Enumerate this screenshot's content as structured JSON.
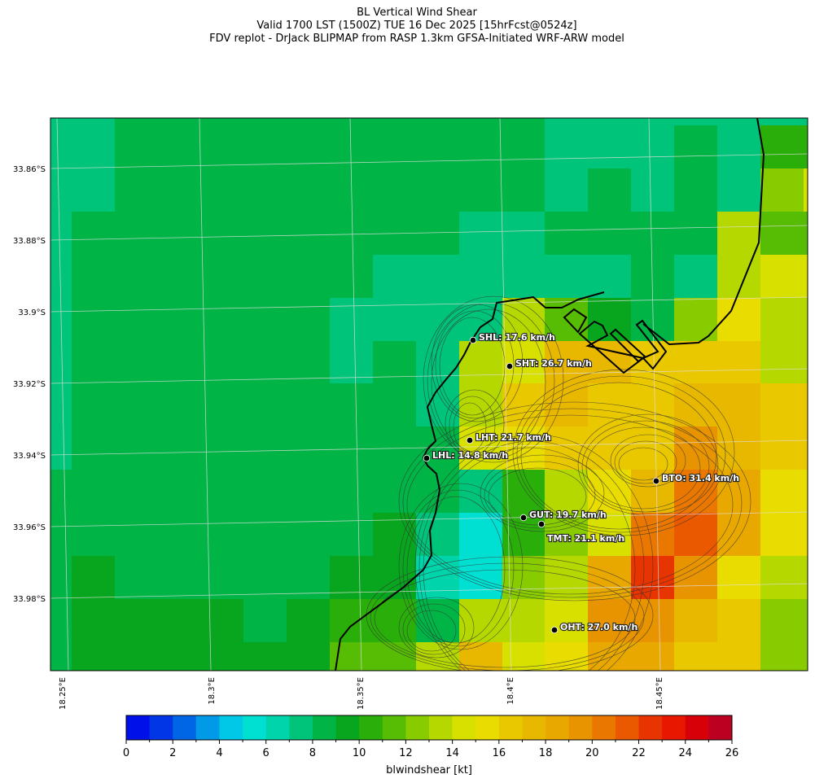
{
  "title": {
    "line1": "BL Vertical Wind Shear",
    "line2": "Valid 1700 LST (1500Z) TUE 16 Dec 2025 [15hrFcst@0524z]",
    "line3": "FDV replot - DrJack BLIPMAP from RASP 1.3km GFSA-Initiated WRF-ARW model"
  },
  "axes": {
    "lat_labels": [
      "33.86°S",
      "33.88°S",
      "33.9°S",
      "33.92°S",
      "33.94°S",
      "33.96°S",
      "33.98°S"
    ],
    "lon_labels": [
      "18.25°E",
      "18.3°E",
      "18.35°E",
      "18.4°E",
      "18.45°E"
    ]
  },
  "stations": [
    {
      "id": "SHL",
      "label": "SHL: 17.6 km/h"
    },
    {
      "id": "SHT",
      "label": "SHT: 26.7 km/h"
    },
    {
      "id": "LHT",
      "label": "LHT: 21.7 km/h"
    },
    {
      "id": "LHL",
      "label": "LHL: 14.8 km/h"
    },
    {
      "id": "BTO",
      "label": "BTO: 31.4 km/h"
    },
    {
      "id": "GUT",
      "label": "GUT: 19.7 km/h"
    },
    {
      "id": "TMT",
      "label": "TMT: 21.1 km/h"
    },
    {
      "id": "OHT",
      "label": "OHT: 27.0 km/h"
    }
  ],
  "colorbar": {
    "label": "blwindshear [kt]",
    "min": 0,
    "max": 26,
    "step": 1,
    "tick_labels": [
      "0",
      "2",
      "4",
      "6",
      "8",
      "10",
      "12",
      "14",
      "16",
      "18",
      "20",
      "22",
      "24",
      "26"
    ],
    "colors": [
      "#0010e8",
      "#0036e6",
      "#0066e6",
      "#009ae6",
      "#00c8e6",
      "#00e0d2",
      "#00d4aa",
      "#00c47a",
      "#00b446",
      "#08a61e",
      "#2aae0a",
      "#56bc04",
      "#88cc00",
      "#b4d800",
      "#d8e000",
      "#e8dc00",
      "#eac800",
      "#e8b800",
      "#e8a800",
      "#e89400",
      "#ea7800",
      "#ea5800",
      "#e83400",
      "#e81800",
      "#d80008",
      "#bc0022"
    ]
  },
  "map_data": {
    "field": "blwindshear",
    "units": "kt",
    "grid_kt": [
      [
        7.5,
        7.5,
        8.5,
        8.5,
        8.5,
        8.5,
        8.5,
        8.5,
        8.5,
        8.5,
        8.5,
        8.5,
        7.5,
        7.5,
        7.5,
        7.5,
        7.5,
        7.5,
        7.5
      ],
      [
        7.5,
        7.5,
        8.5,
        8.5,
        8.5,
        8.5,
        8.5,
        8.5,
        8.5,
        8.5,
        8.5,
        8.5,
        7.5,
        7.5,
        7.5,
        8.5,
        7.5,
        10.5,
        10.5
      ],
      [
        7.5,
        7.5,
        8.5,
        8.5,
        8.5,
        8.5,
        8.5,
        8.5,
        8.5,
        8.5,
        8.5,
        8.5,
        7.5,
        8.5,
        7.5,
        8.5,
        7.5,
        12.5,
        14.5
      ],
      [
        7.5,
        8.5,
        8.5,
        8.5,
        8.5,
        8.5,
        8.5,
        8.5,
        8.5,
        8.5,
        7.5,
        7.5,
        8.5,
        8.5,
        8.5,
        8.5,
        13.5,
        11.5,
        11.5
      ],
      [
        7.5,
        8.5,
        8.5,
        8.5,
        8.5,
        8.5,
        8.5,
        8.5,
        7.5,
        7.5,
        7.5,
        7.5,
        7.5,
        7.5,
        8.5,
        7.5,
        13.5,
        14.5,
        14.5
      ],
      [
        7.5,
        8.5,
        8.5,
        8.5,
        8.5,
        8.5,
        8.5,
        7.5,
        7.5,
        7.5,
        7.5,
        13.5,
        11.5,
        9.5,
        8.5,
        12.5,
        15.5,
        13.5,
        13.5
      ],
      [
        7.5,
        8.5,
        8.5,
        8.5,
        8.5,
        8.5,
        8.5,
        7.5,
        8.5,
        7.5,
        13.5,
        14.5,
        17.5,
        17.5,
        16.5,
        16.5,
        16.5,
        13.5,
        13.5
      ],
      [
        7.5,
        8.5,
        8.5,
        8.5,
        8.5,
        8.5,
        8.5,
        8.5,
        8.5,
        7.5,
        13.5,
        16.5,
        17.5,
        16.5,
        16.5,
        17.5,
        17.5,
        16.5,
        16.5
      ],
      [
        7.5,
        8.5,
        8.5,
        8.5,
        8.5,
        8.5,
        8.5,
        8.5,
        8.5,
        8.5,
        14.5,
        15.5,
        16.5,
        16.5,
        16.5,
        19.5,
        17.5,
        16.5,
        16.5
      ],
      [
        8.5,
        8.5,
        8.5,
        8.5,
        8.5,
        8.5,
        8.5,
        8.5,
        8.5,
        8.5,
        7.5,
        10.5,
        13.5,
        15.5,
        17.5,
        20.5,
        18.5,
        15.5,
        15.5
      ],
      [
        8.5,
        8.5,
        8.5,
        8.5,
        8.5,
        8.5,
        8.5,
        8.5,
        9.5,
        7.5,
        5.5,
        10.5,
        12.5,
        14.5,
        20.5,
        21.5,
        18.5,
        15.5,
        15.5
      ],
      [
        8.5,
        9.5,
        8.5,
        8.5,
        8.5,
        8.5,
        8.5,
        9.5,
        9.5,
        6.5,
        5.5,
        12.5,
        13.5,
        18.5,
        22.5,
        19.5,
        15.5,
        13.5,
        13.5
      ],
      [
        8.5,
        9.5,
        9.5,
        9.5,
        9.5,
        8.5,
        9.5,
        10.5,
        10.5,
        8.5,
        13.5,
        13.5,
        14.5,
        19.5,
        19.5,
        17.5,
        16.5,
        12.5,
        12.5
      ],
      [
        8.5,
        9.5,
        9.5,
        9.5,
        9.5,
        9.5,
        9.5,
        11.5,
        11.5,
        13.5,
        17.5,
        14.5,
        15.5,
        18.5,
        18.5,
        16.5,
        16.5,
        12.5,
        12.5
      ]
    ]
  }
}
